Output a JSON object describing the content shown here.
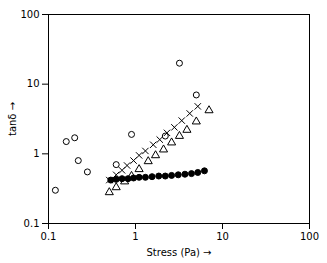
{
  "chart_data": {
    "type": "scatter",
    "xlabel": "Stress (Pa)",
    "ylabel": "tanδ",
    "log": true,
    "grid": false,
    "xlim": [
      0.1,
      100
    ],
    "ylim": [
      0.1,
      100
    ],
    "xticks": [
      0.1,
      1,
      10,
      100
    ],
    "yticks": [
      0.1,
      1,
      10,
      100
    ],
    "series": [
      {
        "color": "black",
        "marker": "open-circle",
        "x": [
          0.12,
          0.16,
          0.2,
          0.22,
          0.28,
          0.6,
          0.9,
          2.2,
          3.2,
          5.0
        ],
        "values": [
          0.3,
          1.5,
          1.7,
          0.8,
          0.55,
          0.7,
          1.9,
          1.8,
          20.0,
          7.0
        ]
      },
      {
        "color": "black",
        "marker": "x",
        "x": [
          0.5,
          0.6,
          0.7,
          0.8,
          0.95,
          1.1,
          1.3,
          1.6,
          1.9,
          2.3,
          2.8,
          3.4,
          4.2,
          5.2
        ],
        "values": [
          0.42,
          0.5,
          0.58,
          0.68,
          0.8,
          0.95,
          1.1,
          1.35,
          1.6,
          2.0,
          2.4,
          3.0,
          3.8,
          4.8
        ]
      },
      {
        "color": "black",
        "marker": "open-triangle",
        "x": [
          0.5,
          0.6,
          0.75,
          0.9,
          1.1,
          1.4,
          1.7,
          2.1,
          2.6,
          3.2,
          3.9,
          5.0,
          7.0
        ],
        "values": [
          0.28,
          0.33,
          0.4,
          0.48,
          0.6,
          0.78,
          0.95,
          1.15,
          1.45,
          1.8,
          2.2,
          2.9,
          4.2
        ]
      },
      {
        "color": "black",
        "marker": "circle",
        "x": [
          0.52,
          0.6,
          0.7,
          0.82,
          0.95,
          1.1,
          1.3,
          1.55,
          1.85,
          2.2,
          2.6,
          3.1,
          3.7,
          4.4,
          5.2,
          6.2
        ],
        "values": [
          0.42,
          0.43,
          0.44,
          0.44,
          0.45,
          0.46,
          0.46,
          0.47,
          0.48,
          0.48,
          0.49,
          0.5,
          0.51,
          0.52,
          0.54,
          0.57
        ]
      }
    ]
  }
}
